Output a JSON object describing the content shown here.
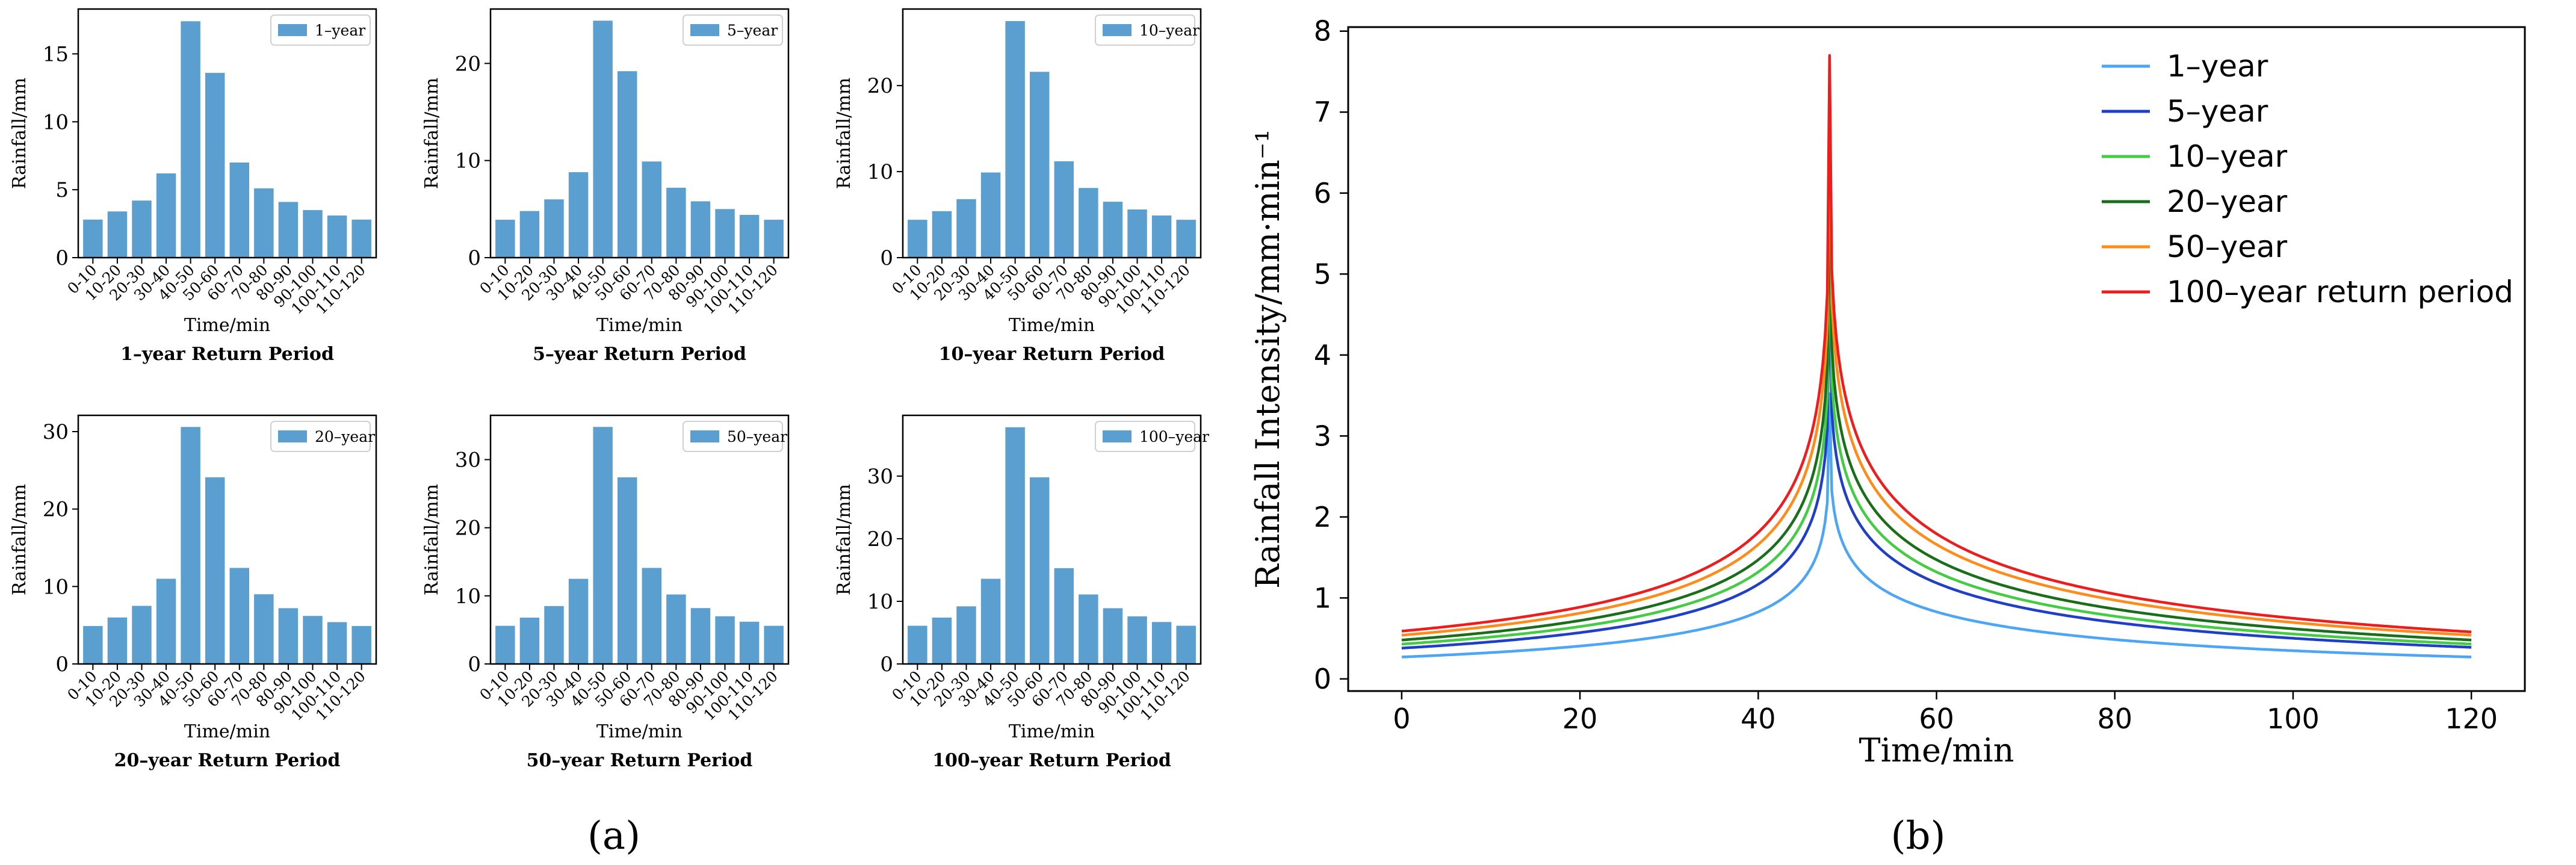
{
  "figure": {
    "panel_a_label": "(a)",
    "panel_b_label": "(b)",
    "bar_color": "#5a9fd0"
  },
  "chart_data": [
    {
      "type": "bar",
      "title": "1–year Return Period",
      "legend": "1–year",
      "xlabel": "Time/min",
      "ylabel": "Rainfall/mm",
      "categories": [
        "0-10",
        "10-20",
        "20-30",
        "30-40",
        "40-50",
        "50-60",
        "60-70",
        "70-80",
        "80-90",
        "90-100",
        "100-110",
        "110-120"
      ],
      "values": [
        2.8,
        3.4,
        4.2,
        6.2,
        17.4,
        13.6,
        7.0,
        5.1,
        4.1,
        3.5,
        3.1,
        2.8
      ],
      "ylim": [
        0,
        18.3
      ],
      "yticks": [
        0,
        5,
        10,
        15
      ]
    },
    {
      "type": "bar",
      "title": "5–year Return Period",
      "legend": "5–year",
      "xlabel": "Time/min",
      "ylabel": "Rainfall/mm",
      "categories": [
        "0-10",
        "10-20",
        "20-30",
        "30-40",
        "40-50",
        "50-60",
        "60-70",
        "70-80",
        "80-90",
        "90-100",
        "100-110",
        "110-120"
      ],
      "values": [
        3.9,
        4.8,
        6.0,
        8.8,
        24.4,
        19.2,
        9.9,
        7.2,
        5.8,
        5.0,
        4.4,
        3.9
      ],
      "ylim": [
        0,
        25.6
      ],
      "yticks": [
        0,
        10,
        20
      ]
    },
    {
      "type": "bar",
      "title": "10–year Return Period",
      "legend": "10–year",
      "xlabel": "Time/min",
      "ylabel": "Rainfall/mm",
      "categories": [
        "0-10",
        "10-20",
        "20-30",
        "30-40",
        "40-50",
        "50-60",
        "60-70",
        "70-80",
        "80-90",
        "90-100",
        "100-110",
        "110-120"
      ],
      "values": [
        4.4,
        5.4,
        6.8,
        9.9,
        27.5,
        21.6,
        11.2,
        8.1,
        6.5,
        5.6,
        4.9,
        4.4
      ],
      "ylim": [
        0,
        28.9
      ],
      "yticks": [
        0,
        10,
        20
      ]
    },
    {
      "type": "bar",
      "title": "20–year Return Period",
      "legend": "20–year",
      "xlabel": "Time/min",
      "ylabel": "Rainfall/mm",
      "categories": [
        "0-10",
        "10-20",
        "20-30",
        "30-40",
        "40-50",
        "50-60",
        "60-70",
        "70-80",
        "80-90",
        "90-100",
        "100-110",
        "110-120"
      ],
      "values": [
        4.9,
        6.0,
        7.5,
        11.0,
        30.6,
        24.1,
        12.4,
        9.0,
        7.2,
        6.2,
        5.4,
        4.9
      ],
      "ylim": [
        0,
        32.1
      ],
      "yticks": [
        0,
        10,
        20,
        30
      ]
    },
    {
      "type": "bar",
      "title": "50–year Return Period",
      "legend": "50–year",
      "xlabel": "Time/min",
      "ylabel": "Rainfall/mm",
      "categories": [
        "0-10",
        "10-20",
        "20-30",
        "30-40",
        "40-50",
        "50-60",
        "60-70",
        "70-80",
        "80-90",
        "90-100",
        "100-110",
        "110-120"
      ],
      "values": [
        5.6,
        6.8,
        8.5,
        12.5,
        34.8,
        27.4,
        14.1,
        10.2,
        8.2,
        7.0,
        6.2,
        5.6
      ],
      "ylim": [
        0,
        36.5
      ],
      "yticks": [
        0,
        10,
        20,
        30
      ]
    },
    {
      "type": "bar",
      "title": "100–year Return Period",
      "legend": "100–year",
      "xlabel": "Time/min",
      "ylabel": "Rainfall/mm",
      "categories": [
        "0-10",
        "10-20",
        "20-30",
        "30-40",
        "40-50",
        "50-60",
        "60-70",
        "70-80",
        "80-90",
        "90-100",
        "100-110",
        "110-120"
      ],
      "values": [
        6.1,
        7.4,
        9.2,
        13.6,
        37.8,
        29.8,
        15.3,
        11.1,
        8.9,
        7.6,
        6.7,
        6.1
      ],
      "ylim": [
        0,
        39.7
      ],
      "yticks": [
        0,
        10,
        20,
        30
      ]
    },
    {
      "type": "line",
      "title": "",
      "xlabel": "Time/min",
      "ylabel": "Rainfall Intensity/mm·min⁻¹",
      "xlim": [
        -6,
        126
      ],
      "ylim": [
        -0.15,
        8.05
      ],
      "xticks": [
        0,
        20,
        40,
        60,
        80,
        100,
        120
      ],
      "yticks": [
        0,
        1,
        2,
        3,
        4,
        5,
        6,
        7,
        8
      ],
      "peak_time": 48,
      "series": [
        {
          "name": "1–year",
          "color": "#4da6f5",
          "peak": 3.52,
          "start": 0.27,
          "end": 0.27
        },
        {
          "name": "5–year",
          "color": "#1f3fc8",
          "peak": 4.98,
          "start": 0.38,
          "end": 0.39
        },
        {
          "name": "10–year",
          "color": "#44cc44",
          "peak": 5.62,
          "start": 0.43,
          "end": 0.43
        },
        {
          "name": "20–year",
          "color": "#1a6e1a",
          "peak": 6.25,
          "start": 0.48,
          "end": 0.48
        },
        {
          "name": "50–year",
          "color": "#ff8c1a",
          "peak": 7.08,
          "start": 0.54,
          "end": 0.54
        },
        {
          "name": "100–year return period",
          "color": "#ee1c1c",
          "peak": 7.7,
          "start": 0.59,
          "end": 0.58
        }
      ]
    }
  ]
}
